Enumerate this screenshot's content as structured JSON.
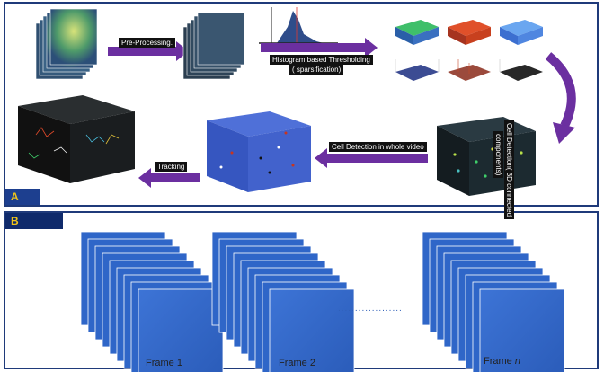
{
  "panelA": {
    "tag": "A",
    "steps": {
      "preprocessing": "Pre-Processing.",
      "threshold_line1": "Histogram based Thresholding",
      "threshold_line2": "( sparsification)",
      "detection3d_line1": "Cell Detection( 3D connected",
      "detection3d_line2": "components)",
      "whole_video": "Cell Detection in whole video",
      "tracking": "Tracking"
    }
  },
  "panelB": {
    "tag": "B",
    "frames": [
      "Frame 1",
      "Frame 2",
      "Frame"
    ],
    "frame_n_italic": "n",
    "ellipsis": "..................."
  },
  "colors": {
    "border": "#1f3a7a",
    "tag_bg": "#1d3f8f",
    "tag_text": "#f0c419",
    "arrow": "#6b2fa0",
    "frame_blue": "#2f66c8"
  }
}
